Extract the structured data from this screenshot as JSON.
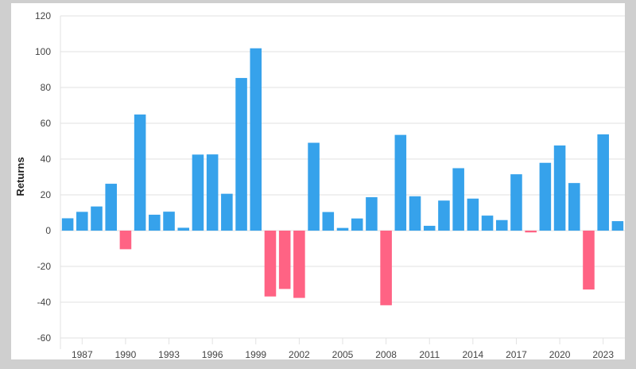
{
  "chart_data": {
    "type": "bar",
    "title": "",
    "xlabel": "",
    "ylabel": "Returns",
    "ylim": [
      -60,
      120
    ],
    "yticks": [
      120,
      100,
      80,
      60,
      40,
      20,
      0,
      -20,
      -40,
      -60
    ],
    "ytick_labels": [
      "120",
      "100",
      "80",
      "60",
      "40",
      "20",
      "0",
      "-20",
      "-40",
      "-60"
    ],
    "xtick_labels": [
      "1987",
      "1990",
      "1993",
      "1996",
      "1999",
      "2002",
      "2005",
      "2008",
      "2011",
      "2014",
      "2017",
      "2020",
      "2023"
    ],
    "grid": true,
    "legend": false,
    "positive_color": "#36a2eb",
    "negative_color": "#ff6384",
    "categories": [
      1986,
      1987,
      1988,
      1989,
      1990,
      1991,
      1992,
      1993,
      1994,
      1995,
      1996,
      1997,
      1998,
      1999,
      2000,
      2001,
      2002,
      2003,
      2004,
      2005,
      2006,
      2007,
      2008,
      2009,
      2010,
      2011,
      2012,
      2013,
      2014,
      2015,
      2016,
      2017,
      2018,
      2019,
      2020,
      2021,
      2022,
      2023,
      2024
    ],
    "values": [
      6.9,
      10.5,
      13.5,
      26.2,
      -10.4,
      64.9,
      8.9,
      10.6,
      1.6,
      42.5,
      42.6,
      20.6,
      85.3,
      101.9,
      -36.8,
      -32.6,
      -37.6,
      49.1,
      10.4,
      1.5,
      6.8,
      18.7,
      -41.7,
      53.5,
      19.2,
      2.7,
      16.8,
      34.9,
      17.9,
      8.4,
      5.9,
      31.5,
      -1.0,
      37.9,
      47.6,
      26.6,
      -32.9,
      53.8,
      5.3
    ]
  }
}
